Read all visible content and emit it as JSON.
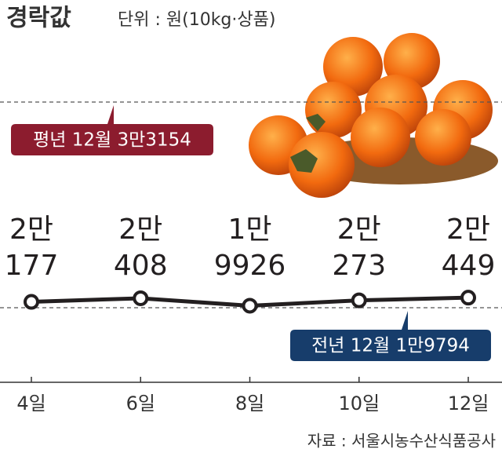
{
  "chart_data": {
    "type": "line",
    "title": "경락값",
    "subtitle": "단위 : 원(10kg·상품)",
    "source": "자료 : 서울시농수산식품공사",
    "categories": [
      "4일",
      "6일",
      "8일",
      "10일",
      "12일"
    ],
    "values": [
      20177,
      20408,
      19926,
      20273,
      20449
    ],
    "value_labels": [
      [
        "2만",
        "177"
      ],
      [
        "2만",
        "408"
      ],
      [
        "1만",
        "9926"
      ],
      [
        "2만",
        "273"
      ],
      [
        "2만",
        "449"
      ]
    ],
    "color": "#231f20",
    "ylim": [
      19000,
      34000
    ],
    "reference_lines": [
      {
        "label": "평년 12월 3만3154",
        "value": 33154,
        "color": "#8c1c2e"
      },
      {
        "label": "전년 12월 1만9794",
        "value": 19794,
        "color": "#173d6b"
      }
    ]
  }
}
